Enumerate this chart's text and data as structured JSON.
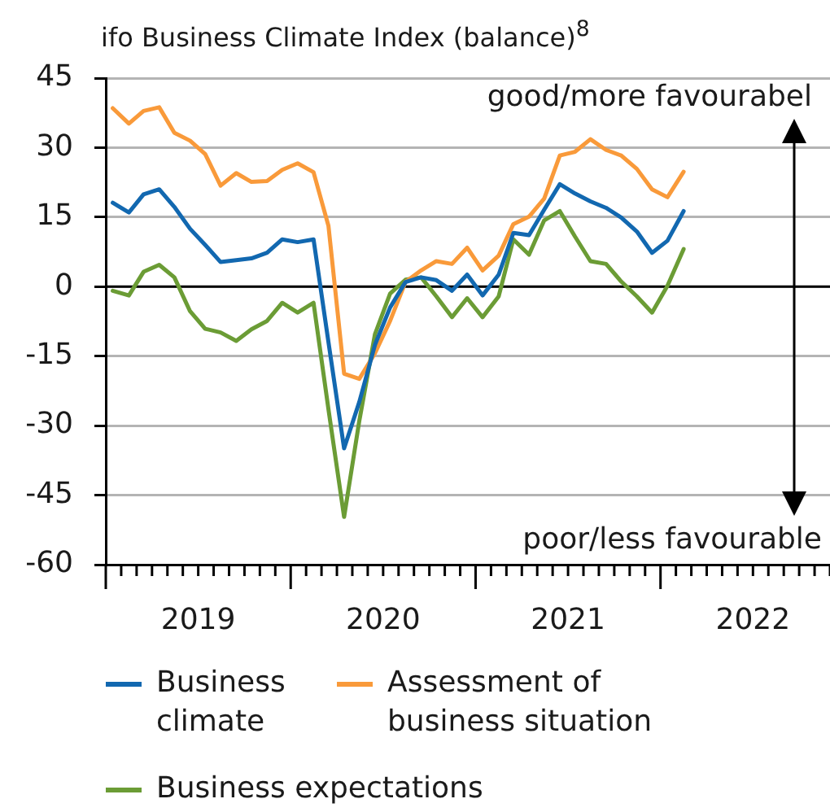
{
  "chart_data": {
    "type": "line",
    "title": "ifo Business Climate Index (balance)$^{8}$",
    "annotations": [
      "good/more favourabel",
      "poor/less favourable"
    ],
    "x": [
      "2019-01-15",
      "2019-02-15",
      "2019-03-15",
      "2019-04-15",
      "2019-05-15",
      "2019-06-15",
      "2019-07-15",
      "2019-08-15",
      "2019-09-15",
      "2019-10-15",
      "2019-11-15",
      "2019-12-15",
      "2020-01-15",
      "2020-02-15",
      "2020-03-15",
      "2020-04-15",
      "2020-05-15",
      "2020-06-15",
      "2020-07-15",
      "2020-08-15",
      "2020-09-15",
      "2020-10-15",
      "2020-11-15",
      "2020-12-15",
      "2021-01-15",
      "2021-02-15",
      "2021-03-15",
      "2021-04-15",
      "2021-05-15",
      "2021-06-15",
      "2021-07-15",
      "2021-08-15",
      "2021-09-15",
      "2021-10-15",
      "2021-11-15",
      "2021-12-15",
      "2022-01-15",
      "2022-02-15"
    ],
    "series": [
      {
        "name": "Business climate",
        "color": "#1268b0",
        "values": [
          18.1,
          16.0,
          19.9,
          21.0,
          17.2,
          12.5,
          9.0,
          5.3,
          5.7,
          6.1,
          7.3,
          10.2,
          9.6,
          10.2,
          -12.0,
          -34.9,
          -24.9,
          -12.6,
          -4.5,
          1.0,
          2.0,
          1.4,
          -0.9,
          2.6,
          -1.9,
          2.6,
          11.6,
          11.1,
          16.6,
          22.1,
          20.1,
          18.4,
          17.0,
          14.9,
          11.9,
          7.3,
          9.9,
          16.3
        ]
      },
      {
        "name": "Assessment of business situation",
        "color": "#f99a3a",
        "values": [
          38.5,
          35.2,
          37.9,
          38.7,
          33.2,
          31.5,
          28.6,
          21.8,
          24.5,
          22.6,
          22.8,
          25.2,
          26.6,
          24.7,
          13.1,
          -18.8,
          -19.9,
          -14.4,
          -7.4,
          1.0,
          3.5,
          5.5,
          4.9,
          8.4,
          3.5,
          6.7,
          13.5,
          15.1,
          19.0,
          28.3,
          29.1,
          31.8,
          29.5,
          28.3,
          25.4,
          21.0,
          19.3,
          24.8
        ]
      },
      {
        "name": "Business expectations",
        "color": "#6b9c35",
        "values": [
          -0.9,
          -1.9,
          3.2,
          4.7,
          2.0,
          -5.3,
          -9.1,
          -9.9,
          -11.7,
          -9.2,
          -7.4,
          -3.5,
          -5.6,
          -3.5,
          -26.5,
          -49.7,
          -29.0,
          -10.3,
          -1.5,
          1.5,
          2.0,
          -2.1,
          -6.6,
          -2.5,
          -6.6,
          -2.1,
          10.2,
          6.9,
          14.3,
          16.3,
          10.8,
          5.5,
          4.9,
          1.1,
          -2.1,
          -5.6,
          0.2,
          8.1
        ]
      }
    ],
    "xlim": [
      "2019-01",
      "2022-12"
    ],
    "xticks": [
      {
        "value": "2019-01",
        "label": null
      },
      {
        "value": "2019-02",
        "label": null
      },
      {
        "value": "2019-03",
        "label": null
      },
      {
        "value": "2019-04",
        "label": null
      },
      {
        "value": "2019-05",
        "label": null
      },
      {
        "value": "2019-06",
        "label": null
      },
      {
        "value": "2019-07",
        "label": "2019"
      },
      {
        "value": "2019-08",
        "label": null
      },
      {
        "value": "2019-09",
        "label": null
      },
      {
        "value": "2019-10",
        "label": null
      },
      {
        "value": "2019-11",
        "label": null
      },
      {
        "value": "2019-12",
        "label": null
      },
      {
        "value": "2020-01",
        "label": null
      },
      {
        "value": "2020-02",
        "label": null
      },
      {
        "value": "2020-03",
        "label": null
      },
      {
        "value": "2020-04",
        "label": null
      },
      {
        "value": "2020-05",
        "label": null
      },
      {
        "value": "2020-06",
        "label": null
      },
      {
        "value": "2020-07",
        "label": "2020"
      },
      {
        "value": "2020-08",
        "label": null
      },
      {
        "value": "2020-09",
        "label": null
      },
      {
        "value": "2020-10",
        "label": null
      },
      {
        "value": "2020-11",
        "label": null
      },
      {
        "value": "2020-12",
        "label": null
      },
      {
        "value": "2021-01",
        "label": null
      },
      {
        "value": "2021-02",
        "label": null
      },
      {
        "value": "2021-03",
        "label": null
      },
      {
        "value": "2021-04",
        "label": null
      },
      {
        "value": "2021-05",
        "label": null
      },
      {
        "value": "2021-06",
        "label": null
      },
      {
        "value": "2021-07",
        "label": "2021"
      },
      {
        "value": "2021-08",
        "label": null
      },
      {
        "value": "2021-09",
        "label": null
      },
      {
        "value": "2021-10",
        "label": null
      },
      {
        "value": "2021-11",
        "label": null
      },
      {
        "value": "2021-12",
        "label": null
      },
      {
        "value": "2022-01",
        "label": null
      },
      {
        "value": "2022-02",
        "label": null
      },
      {
        "value": "2022-03",
        "label": null
      },
      {
        "value": "2022-04",
        "label": null
      },
      {
        "value": "2022-05",
        "label": null
      },
      {
        "value": "2022-06",
        "label": null
      },
      {
        "value": "2022-07",
        "label": "2022"
      },
      {
        "value": "2022-08",
        "label": null
      },
      {
        "value": "2022-09",
        "label": null
      },
      {
        "value": "2022-10",
        "label": null
      },
      {
        "value": "2022-11",
        "label": null
      },
      {
        "value": "2022-12",
        "label": null
      }
    ],
    "ylim": [
      -60,
      45
    ],
    "yticks": [
      -60,
      -45,
      -30,
      -15,
      0,
      15,
      30,
      45
    ],
    "ref_lines": [
      {
        "axis": "y",
        "value": 0,
        "color": "#000000"
      }
    ],
    "grid": "y",
    "legend": "bottom",
    "marker": "none"
  }
}
